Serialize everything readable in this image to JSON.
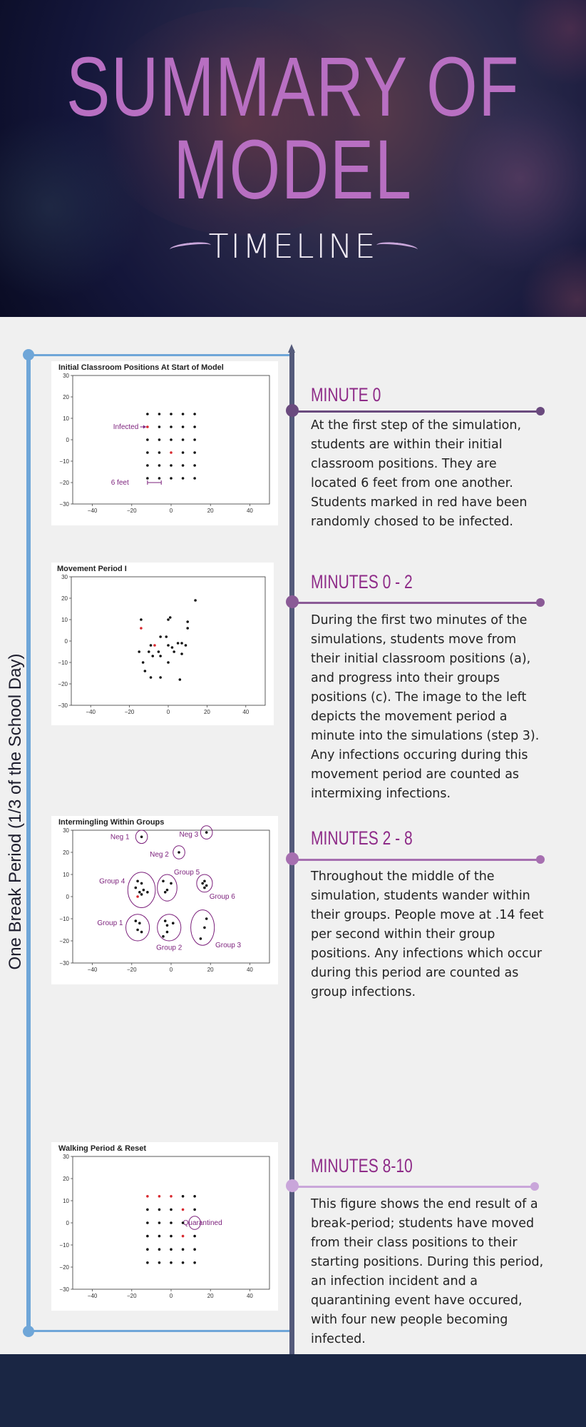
{
  "header": {
    "title_line1": "SUMMARY OF",
    "title_line2": "MODEL",
    "subtitle": "TIMELINE"
  },
  "side_label": "One Break Period (1/3 of the School Day)",
  "colors": {
    "title": "#b86fc2",
    "blue_bracket": "#6fa6d8",
    "timeline": "#545a7a",
    "node_dark": "#6a4a7e",
    "node_mid": "#a66fb0",
    "node_light": "#c9a6da",
    "minute_title": "#8e2b88",
    "footer": "#1a2644",
    "annotation": "#7b1f7b"
  },
  "sections": [
    {
      "title": "MINUTE 0",
      "text": "At the first step of the simulation, students are within their initial classroom positions. They are located 6 feet from one another. Students marked in red have been randomly chosed to be infected."
    },
    {
      "title": "MINUTES 0 - 2",
      "text": "During the first two minutes of the simulations, students move from their initial classroom positions (a), and progress into their groups positions (c). The image to the left depicts the movement period a minute into the simulations (step 3). Any infections occuring during this movement period are counted as intermixing infections."
    },
    {
      "title": "MINUTES 2 - 8",
      "text": "Throughout the middle of the simulation, students wander within their groups. People move at .14 feet per second within their group positions. Any infections which occur during this period are counted as group infections."
    },
    {
      "title": "MINUTES 8-10",
      "text": "This figure shows the end result of a break-period; students have moved from their class positions to their starting positions. During this period, an infection incident and a quarantining event have occured, with four new people becoming infected."
    }
  ],
  "chart_data": [
    {
      "type": "scatter",
      "title": "Initial Classroom Positions At Start of Model",
      "xlim": [
        -50,
        50
      ],
      "ylim": [
        -30,
        30
      ],
      "xticks": [
        -40,
        -20,
        0,
        20,
        40
      ],
      "yticks": [
        30,
        20,
        10,
        0,
        -10,
        -20,
        -30
      ],
      "points": [
        {
          "x": -12,
          "y": 12
        },
        {
          "x": -6,
          "y": 12
        },
        {
          "x": 0,
          "y": 12
        },
        {
          "x": 6,
          "y": 12
        },
        {
          "x": 12,
          "y": 12
        },
        {
          "x": -12,
          "y": 6,
          "infected": true
        },
        {
          "x": -6,
          "y": 6
        },
        {
          "x": 0,
          "y": 6
        },
        {
          "x": 6,
          "y": 6
        },
        {
          "x": 12,
          "y": 6
        },
        {
          "x": -12,
          "y": 0
        },
        {
          "x": -6,
          "y": 0
        },
        {
          "x": 0,
          "y": 0
        },
        {
          "x": 6,
          "y": 0
        },
        {
          "x": 12,
          "y": 0
        },
        {
          "x": -12,
          "y": -6
        },
        {
          "x": -6,
          "y": -6
        },
        {
          "x": 0,
          "y": -6,
          "infected": true
        },
        {
          "x": 6,
          "y": -6
        },
        {
          "x": 12,
          "y": -6
        },
        {
          "x": -12,
          "y": -12
        },
        {
          "x": -6,
          "y": -12
        },
        {
          "x": 0,
          "y": -12
        },
        {
          "x": 6,
          "y": -12
        },
        {
          "x": 12,
          "y": -12
        },
        {
          "x": -12,
          "y": -18
        },
        {
          "x": -6,
          "y": -18
        },
        {
          "x": 0,
          "y": -18
        },
        {
          "x": 6,
          "y": -18
        },
        {
          "x": 12,
          "y": -18
        }
      ],
      "annotations": [
        {
          "text": "Infected",
          "x": -23,
          "y": 6,
          "kind": "arrow",
          "to_x": -12,
          "to_y": 6
        },
        {
          "text": "6 feet",
          "x": -26,
          "y": -20,
          "kind": "span",
          "from_x": -12,
          "to_x": -5,
          "at_y": -20
        }
      ]
    },
    {
      "type": "scatter",
      "title": "Movement Period I",
      "xlim": [
        -50,
        50
      ],
      "ylim": [
        -30,
        30
      ],
      "xticks": [
        -40,
        -20,
        0,
        20,
        40
      ],
      "yticks": [
        30,
        20,
        10,
        0,
        -10,
        -20,
        -30
      ],
      "points": [
        {
          "x": 14,
          "y": 19
        },
        {
          "x": 1,
          "y": 11
        },
        {
          "x": 0,
          "y": 10
        },
        {
          "x": -14,
          "y": 10
        },
        {
          "x": 10,
          "y": 9
        },
        {
          "x": -14,
          "y": 6,
          "infected": true
        },
        {
          "x": 10,
          "y": 6
        },
        {
          "x": -4,
          "y": 2
        },
        {
          "x": -1,
          "y": 2
        },
        {
          "x": -9,
          "y": -2
        },
        {
          "x": -7,
          "y": -2,
          "infected": true
        },
        {
          "x": 0,
          "y": -2
        },
        {
          "x": 5,
          "y": -1
        },
        {
          "x": 7,
          "y": -1
        },
        {
          "x": 9,
          "y": -2
        },
        {
          "x": -15,
          "y": -5
        },
        {
          "x": -10,
          "y": -5
        },
        {
          "x": -5,
          "y": -5
        },
        {
          "x": 2,
          "y": -3
        },
        {
          "x": 3,
          "y": -5
        },
        {
          "x": -8,
          "y": -7
        },
        {
          "x": -4,
          "y": -7
        },
        {
          "x": 7,
          "y": -6
        },
        {
          "x": -13,
          "y": -10
        },
        {
          "x": 0,
          "y": -10
        },
        {
          "x": -12,
          "y": -14
        },
        {
          "x": -9,
          "y": -17
        },
        {
          "x": -4,
          "y": -17
        },
        {
          "x": 6,
          "y": -18
        }
      ]
    },
    {
      "type": "scatter",
      "title": "Intermingling Within Groups",
      "xlim": [
        -50,
        50
      ],
      "ylim": [
        -30,
        30
      ],
      "xticks": [
        -40,
        -20,
        0,
        20,
        40
      ],
      "yticks": [
        30,
        20,
        10,
        0,
        -10,
        -20,
        -30
      ],
      "points": [
        {
          "x": -15,
          "y": 27
        },
        {
          "x": 4,
          "y": 20
        },
        {
          "x": 18,
          "y": 29
        },
        {
          "x": -17,
          "y": 7
        },
        {
          "x": -15,
          "y": 6
        },
        {
          "x": -18,
          "y": 4
        },
        {
          "x": -16,
          "y": 2
        },
        {
          "x": -14,
          "y": 3
        },
        {
          "x": -12,
          "y": 2
        },
        {
          "x": -17,
          "y": 0,
          "infected": true
        },
        {
          "x": -15,
          "y": 1
        },
        {
          "x": -4,
          "y": 7
        },
        {
          "x": 0,
          "y": 6
        },
        {
          "x": -2,
          "y": 3
        },
        {
          "x": -3,
          "y": 2
        },
        {
          "x": 17,
          "y": 7
        },
        {
          "x": 16,
          "y": 6
        },
        {
          "x": 18,
          "y": 5
        },
        {
          "x": 17,
          "y": 4
        },
        {
          "x": -18,
          "y": -11
        },
        {
          "x": -16,
          "y": -12
        },
        {
          "x": -17,
          "y": -15
        },
        {
          "x": -15,
          "y": -16
        },
        {
          "x": -3,
          "y": -11
        },
        {
          "x": 1,
          "y": -12
        },
        {
          "x": -2,
          "y": -13
        },
        {
          "x": -2,
          "y": -16
        },
        {
          "x": -4,
          "y": -18
        },
        {
          "x": 18,
          "y": -10
        },
        {
          "x": 17,
          "y": -14
        },
        {
          "x": 15,
          "y": -19
        }
      ],
      "groups": [
        {
          "label": "Neg 1",
          "cx": -15,
          "cy": 27,
          "rx": 3,
          "ry": 3,
          "lx": -26,
          "ly": 27
        },
        {
          "label": "Neg 2",
          "cx": 4,
          "cy": 20,
          "rx": 3,
          "ry": 3,
          "lx": -6,
          "ly": 19
        },
        {
          "label": "Neg 3",
          "cx": 18,
          "cy": 29,
          "rx": 3,
          "ry": 3,
          "lx": 9,
          "ly": 28
        },
        {
          "label": "Group 4",
          "cx": -15,
          "cy": 3,
          "rx": 7,
          "ry": 8,
          "lx": -30,
          "ly": 7
        },
        {
          "label": "Group 5",
          "cx": -2,
          "cy": 4,
          "rx": 5,
          "ry": 6,
          "lx": 8,
          "ly": 11
        },
        {
          "label": "Group 6",
          "cx": 17,
          "cy": 6,
          "rx": 4,
          "ry": 4,
          "lx": 26,
          "ly": 0
        },
        {
          "label": "Group 1",
          "cx": -17,
          "cy": -14,
          "rx": 6,
          "ry": 6,
          "lx": -31,
          "ly": -12
        },
        {
          "label": "Group 2",
          "cx": -1,
          "cy": -14,
          "rx": 6,
          "ry": 6,
          "lx": -1,
          "ly": -23
        },
        {
          "label": "Group 3",
          "cx": 16,
          "cy": -14,
          "rx": 6,
          "ry": 8,
          "lx": 29,
          "ly": -22
        }
      ]
    },
    {
      "type": "scatter",
      "title": "Walking Period & Reset",
      "xlim": [
        -50,
        50
      ],
      "ylim": [
        -30,
        30
      ],
      "xticks": [
        -40,
        -20,
        0,
        20,
        40
      ],
      "yticks": [
        30,
        20,
        10,
        0,
        -10,
        -20,
        -30
      ],
      "points": [
        {
          "x": -12,
          "y": 12,
          "infected": true
        },
        {
          "x": -6,
          "y": 12,
          "infected": true
        },
        {
          "x": 0,
          "y": 12,
          "infected": true
        },
        {
          "x": 6,
          "y": 12
        },
        {
          "x": 12,
          "y": 12
        },
        {
          "x": -12,
          "y": 6
        },
        {
          "x": -6,
          "y": 6
        },
        {
          "x": 0,
          "y": 6
        },
        {
          "x": 6,
          "y": 6,
          "infected": true
        },
        {
          "x": 12,
          "y": 6
        },
        {
          "x": -12,
          "y": 0
        },
        {
          "x": -6,
          "y": 0
        },
        {
          "x": 0,
          "y": 0
        },
        {
          "x": 6,
          "y": 0
        },
        {
          "x": -12,
          "y": -6
        },
        {
          "x": -6,
          "y": -6
        },
        {
          "x": 0,
          "y": -6
        },
        {
          "x": 6,
          "y": -6,
          "infected": true
        },
        {
          "x": 12,
          "y": -6
        },
        {
          "x": -12,
          "y": -12
        },
        {
          "x": -6,
          "y": -12
        },
        {
          "x": 0,
          "y": -12
        },
        {
          "x": 6,
          "y": -12
        },
        {
          "x": 12,
          "y": -12
        },
        {
          "x": -12,
          "y": -18
        },
        {
          "x": -6,
          "y": -18
        },
        {
          "x": 0,
          "y": -18
        },
        {
          "x": 6,
          "y": -18
        },
        {
          "x": 12,
          "y": -18
        }
      ],
      "groups": [
        {
          "label": "Quarantined",
          "cx": 12,
          "cy": 0,
          "rx": 3,
          "ry": 3,
          "lx": 16,
          "ly": 0
        }
      ]
    }
  ]
}
